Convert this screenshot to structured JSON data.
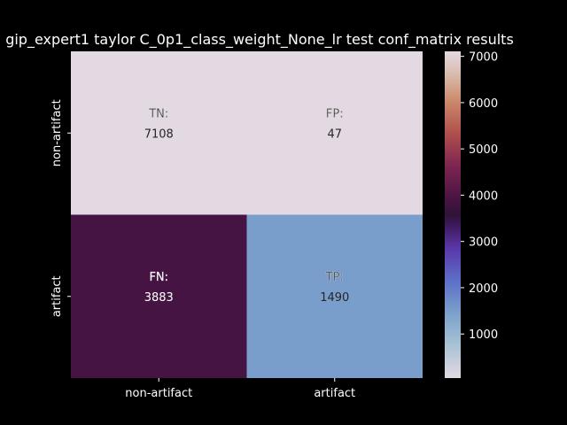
{
  "chart_data": {
    "type": "heatmap",
    "title": "gip_expert1 taylor C_0p1_class_weight_None_lr test conf_matrix results",
    "x_categories": [
      "non-artifact",
      "artifact"
    ],
    "y_categories": [
      "non-artifact",
      "artifact"
    ],
    "cells": [
      [
        {
          "label": "TN:",
          "value": 7108
        },
        {
          "label": "FP:",
          "value": 47
        }
      ],
      [
        {
          "label": "FN:",
          "value": 3883
        },
        {
          "label": "TP:",
          "value": 1490
        }
      ]
    ],
    "colormap": "twilight",
    "colorbar": {
      "range": [
        47,
        7108
      ],
      "ticks": [
        1000,
        2000,
        3000,
        4000,
        5000,
        6000,
        7000
      ]
    }
  }
}
